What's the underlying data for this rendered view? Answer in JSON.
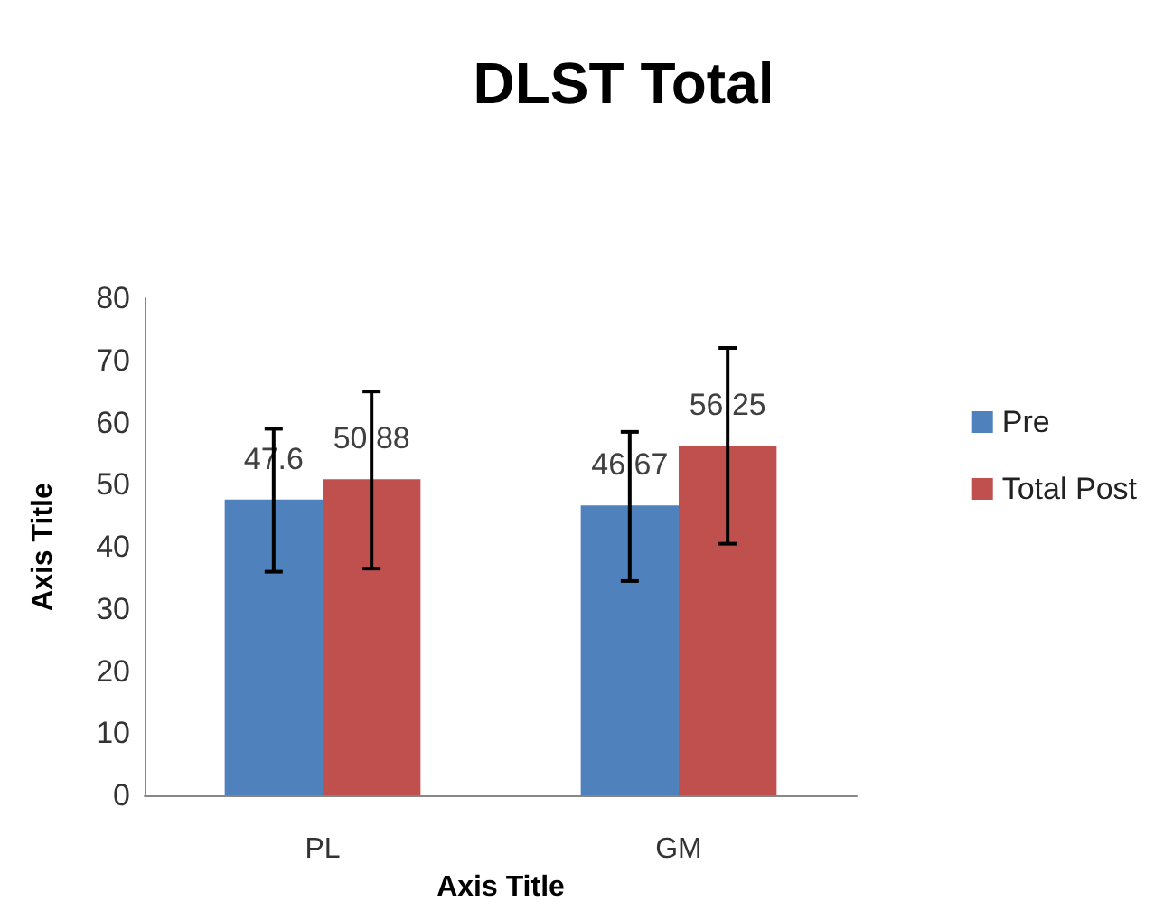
{
  "chart_data": {
    "type": "bar",
    "title": "DLST Total",
    "xlabel": "Axis Title",
    "ylabel": "Axis Title",
    "categories": [
      "PL",
      "GM"
    ],
    "series": [
      {
        "name": "Pre",
        "color": "#4f81bd",
        "values": [
          47.6,
          46.67
        ],
        "errors": [
          [
            36,
            59
          ],
          [
            34.5,
            58.5
          ]
        ]
      },
      {
        "name": "Total Post",
        "color": "#c0504d",
        "values": [
          50.88,
          56.25
        ],
        "errors": [
          [
            36.5,
            65
          ],
          [
            40.5,
            72
          ]
        ]
      }
    ],
    "ylim": [
      0,
      80
    ],
    "yticks": [
      0,
      10,
      20,
      30,
      40,
      50,
      60,
      70,
      80
    ],
    "grid": false,
    "legend": "right",
    "data_labels": true
  }
}
